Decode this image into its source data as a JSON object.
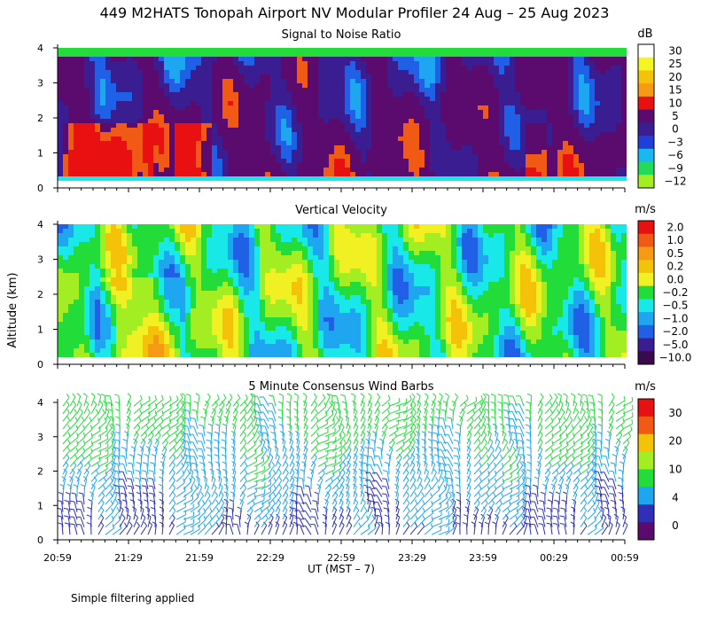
{
  "title": "449 M2HATS Tonopah Airport NV Modular Profiler 24 Aug – 25 Aug 2023",
  "ylabel": "Altitude (km)",
  "xlabel": "UT  (MST – 7)",
  "x_ticks": [
    "20:59",
    "21:29",
    "21:59",
    "22:29",
    "22:59",
    "23:29",
    "23:59",
    "00:29",
    "00:59"
  ],
  "footer_note": "Simple filtering applied",
  "palette": [
    "#5b0b6e",
    "#3a1e91",
    "#2f2fb7",
    "#1f60e6",
    "#1ea6f0",
    "#18e8e8",
    "#22dc3a",
    "#a3ee22",
    "#f0f022",
    "#f5c20a",
    "#f59a12",
    "#f05a14",
    "#e81010"
  ],
  "chart_data": [
    {
      "type": "heatmap",
      "title": "Signal to Noise Ratio",
      "unit": "dB",
      "ylim": [
        0,
        4
      ],
      "y_ticks": [
        "0",
        "1",
        "2",
        "3",
        "4"
      ],
      "x_range": [
        "20:59",
        "00:59"
      ],
      "legend": [
        "30",
        "25",
        "20",
        "15",
        "10",
        "5",
        "0",
        "−3",
        "−6",
        "−9",
        "−12"
      ],
      "legend_colors": [
        "#ffffff",
        "#f5f522",
        "#f5c20a",
        "#f59a12",
        "#e81010",
        "#5b0b6e",
        "#3a1e91",
        "#1f40d8",
        "#18b8f0",
        "#22dc58",
        "#a3ee22"
      ]
    },
    {
      "type": "heatmap",
      "title": "Vertical Velocity",
      "unit": "m/s",
      "ylim": [
        0,
        4
      ],
      "y_ticks": [
        "0",
        "1",
        "2",
        "3",
        "4"
      ],
      "x_range": [
        "20:59",
        "00:59"
      ],
      "legend": [
        "2.0",
        "1.0",
        "0.5",
        "0.2",
        "0.0",
        "−0.2",
        "−0.5",
        "−1.0",
        "−2.0",
        "−5.0",
        "−10.0"
      ],
      "legend_colors": [
        "#e81010",
        "#f05a14",
        "#f59a12",
        "#f5c20a",
        "#f0f022",
        "#22dc3a",
        "#18e8e8",
        "#1ea6f0",
        "#1f60e6",
        "#3a1e91",
        "#3a0a4e"
      ]
    },
    {
      "type": "scatter",
      "title": "5 Minute Consensus Wind Barbs",
      "unit": "m/s",
      "ylim": [
        0,
        4
      ],
      "y_ticks": [
        "0",
        "1",
        "2",
        "3",
        "4"
      ],
      "x_range": [
        "20:59",
        "00:59"
      ],
      "legend": [
        "30",
        "20",
        "10",
        "4",
        "0"
      ],
      "legend_colors": [
        "#e81010",
        "#f05a14",
        "#f5c20a",
        "#a3ee22",
        "#22dc3a",
        "#1ea6f0",
        "#2f2fb7",
        "#5b0b6e"
      ]
    }
  ]
}
